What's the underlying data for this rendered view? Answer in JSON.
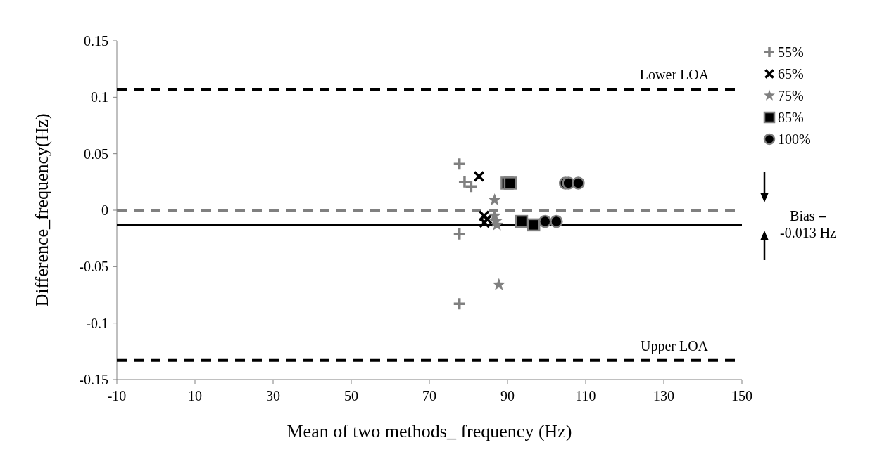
{
  "chart_data": {
    "type": "scatter",
    "xlabel": "Mean of two methods_ frequency (Hz)",
    "ylabel": "Difference_frequency(Hz)",
    "xlim": [
      -10,
      150
    ],
    "xticks": [
      -10,
      10,
      30,
      50,
      70,
      90,
      110,
      130,
      150
    ],
    "ylim": [
      -0.15,
      0.15
    ],
    "yticks": [
      0.15,
      0.1,
      0.05,
      0,
      -0.05,
      -0.1,
      -0.15
    ],
    "grid": false,
    "legend": "top right",
    "series": [
      {
        "name": "55%",
        "color": "#808080",
        "marker": "plus",
        "x": [
          77.7,
          79.0,
          80.7,
          77.7,
          77.7
        ],
        "values": [
          0.041,
          0.025,
          0.021,
          -0.021,
          -0.083
        ]
      },
      {
        "name": "65%",
        "color": "#000000",
        "marker": "cross",
        "x": [
          82.7,
          84.0,
          84.1,
          84.8
        ],
        "values": [
          0.03,
          -0.005,
          -0.011,
          -0.008
        ]
      },
      {
        "name": "75%",
        "color": "#808080",
        "marker": "star",
        "x": [
          86.7,
          86.7,
          87.0,
          87.3,
          87.8
        ],
        "values": [
          0.009,
          -0.005,
          -0.01,
          -0.013,
          -0.066
        ]
      },
      {
        "name": "85%",
        "color": "#000000",
        "marker": "square",
        "x": [
          89.9,
          90.7,
          93.6,
          96.7
        ],
        "values": [
          0.024,
          0.024,
          -0.01,
          -0.013
        ]
      },
      {
        "name": "100%",
        "color": "#000000",
        "marker": "circle",
        "x": [
          104.8,
          105.6,
          108.1,
          99.6,
          102.5
        ],
        "values": [
          0.024,
          0.024,
          0.024,
          -0.01,
          -0.01
        ]
      }
    ],
    "ref_lines": [
      {
        "axis": "y",
        "value": 0.107,
        "label": "Lower LOA",
        "color": "#000000",
        "line_style": "dashed"
      },
      {
        "axis": "y",
        "value": -0.133,
        "label": "Upper LOA",
        "color": "#000000",
        "line_style": "dashed"
      },
      {
        "axis": "y",
        "value": 0,
        "label": null,
        "color": "#808080",
        "line_style": "dashed"
      },
      {
        "axis": "y",
        "value": -0.013,
        "label": "Bias = -0.013 Hz",
        "color": "#000000",
        "line_style": "solid"
      }
    ]
  }
}
